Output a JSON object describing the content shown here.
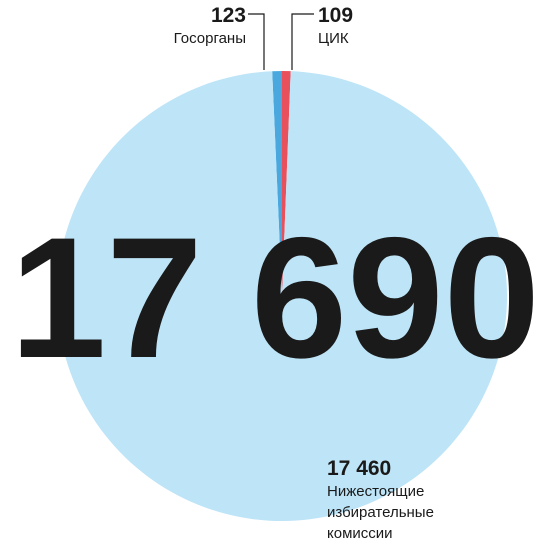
{
  "chart_data": {
    "type": "pie",
    "categories": [
      "Госорганы",
      "ЦИК",
      "Нижестоящие избирательные комиссии"
    ],
    "values": [
      123,
      109,
      17460
    ],
    "value_labels": [
      "123",
      "109",
      "17 460"
    ],
    "colors": [
      "#4aa8de",
      "#e8505b",
      "#bde4f7"
    ],
    "annotation": "17 690"
  }
}
